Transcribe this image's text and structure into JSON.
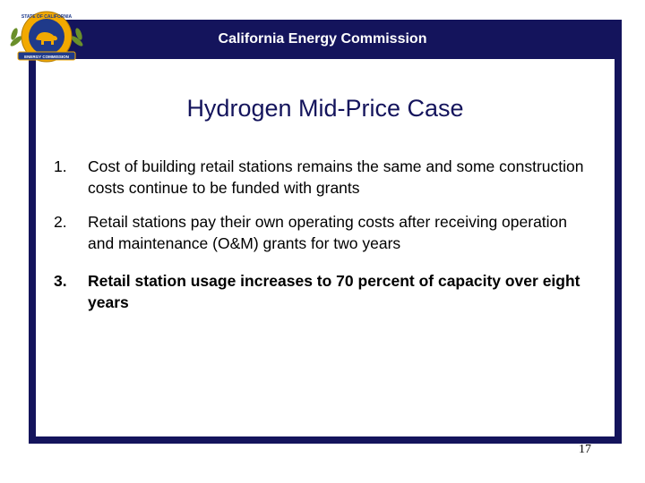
{
  "header": {
    "title": "California Energy Commission"
  },
  "logo": {
    "name": "seal-icon",
    "text_top": "STATE OF CALIFORNIA",
    "text_bottom": "ENERGY COMMISSION",
    "colors": {
      "ring": "#f2a900",
      "banner": "#1f3a8a",
      "inner": "#1f3a8a",
      "leaves": "#6a8f2a"
    }
  },
  "slide": {
    "title": "Hydrogen Mid-Price Case",
    "items": [
      {
        "number": "1.",
        "text": "Cost of building retail stations remains the same and some construction costs continue to be funded with grants"
      },
      {
        "number": "2.",
        "text": "Retail stations pay their own operating costs after receiving operation and maintenance (O&M) grants for two years"
      },
      {
        "number": "3.",
        "text": "Retail station usage increases to 70 percent of capacity over eight years"
      }
    ],
    "page_number": "17"
  },
  "colors": {
    "frame": "#14145c",
    "title": "#14145c",
    "header_text": "#ffffff"
  }
}
